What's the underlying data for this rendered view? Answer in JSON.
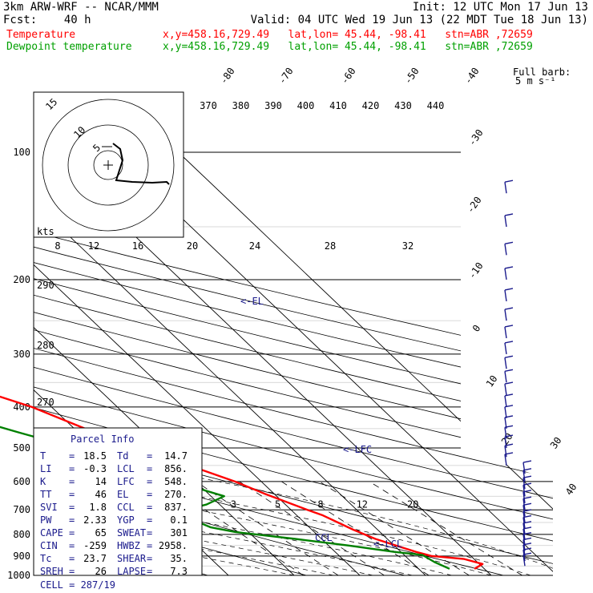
{
  "header": {
    "model": "3km ARW-WRF -- NCAR/MMM",
    "init": "Init: 12 UTC Mon 17 Jun 13",
    "fcst": "Fcst:    40 h",
    "valid": "Valid: 04 UTC Wed 19 Jun 13 (22 MDT Tue 18 Jun 13)",
    "temp_label": "Temperature",
    "temp_info": "x,y=458.16,729.49   lat,lon= 45.44, -98.41   stn=ABR ,72659",
    "dew_label": "Dewpoint temperature",
    "dew_info": "x,y=458.16,729.49   lat,lon= 45.44, -98.41   stn=ABR ,72659"
  },
  "colors": {
    "temperature": "#ff0000",
    "dewpoint": "#008000",
    "annotation": "#1a1a8c",
    "grid": "#000000",
    "fill_line": "#cccccc"
  },
  "chart_data": {
    "type": "line",
    "pressure_levels": [
      1000,
      900,
      800,
      700,
      600,
      500,
      400,
      300,
      200,
      100
    ],
    "pressure_labels": [
      "1000",
      "900",
      "800",
      "700",
      "600",
      "500",
      "400",
      "300",
      "200",
      "100"
    ],
    "isotherm_labels": [
      "-80",
      "-70",
      "-60",
      "-50",
      "-40",
      "-30",
      "-20",
      "-10",
      "0",
      "10",
      "20",
      "30",
      "40"
    ],
    "isotherm_values": [
      -80,
      -70,
      -60,
      -50,
      -40,
      -30,
      -20,
      -10,
      0,
      10,
      20,
      30,
      40
    ],
    "theta_labels": [
      "370",
      "380",
      "390",
      "400",
      "410",
      "420",
      "430",
      "440"
    ],
    "dry_adiabat_labels": [
      "290",
      "280",
      "270"
    ],
    "mixing_ratio_labels": [
      "2",
      "3",
      "5",
      "8",
      "12",
      "20"
    ],
    "hodo_axis_labels": [
      "8",
      "12",
      "16",
      "20",
      "24",
      "28",
      "32"
    ],
    "hodo_unit": "kts",
    "hodo_ring_labels": [
      "15",
      "10",
      "5"
    ],
    "barb_label": "Full barb:",
    "barb_unit": "5 m s⁻¹",
    "series": [
      {
        "name": "Temperature",
        "color": "#ff0000",
        "points": [
          [
            965,
            18.5
          ],
          [
            940,
            20.5
          ],
          [
            915,
            18.5
          ],
          [
            900,
            14
          ],
          [
            880,
            12.3
          ],
          [
            820,
            8.2
          ],
          [
            780,
            6.3
          ],
          [
            720,
            3.9
          ],
          [
            700,
            2.5
          ],
          [
            640,
            -1.5
          ],
          [
            600,
            -4
          ],
          [
            560,
            -7.5
          ],
          [
            520,
            -11
          ],
          [
            500,
            -13
          ],
          [
            460,
            -17.5
          ],
          [
            400,
            -23
          ],
          [
            360,
            -29
          ],
          [
            300,
            -39
          ],
          [
            260,
            -47
          ],
          [
            220,
            -56
          ],
          [
            205,
            -58.5
          ],
          [
            190,
            -59.5
          ],
          [
            175,
            -58
          ],
          [
            160,
            -54.5
          ],
          [
            140,
            -55
          ],
          [
            120,
            -57
          ],
          [
            100,
            -54
          ]
        ]
      },
      {
        "name": "Dewpoint temperature",
        "color": "#008000",
        "points": [
          [
            965,
            14.7
          ],
          [
            930,
            13.5
          ],
          [
            895,
            12.8
          ],
          [
            880,
            9
          ],
          [
            850,
            3
          ],
          [
            820,
            -4
          ],
          [
            790,
            -12
          ],
          [
            770,
            -15
          ],
          [
            720,
            -17.5
          ],
          [
            700,
            -16
          ],
          [
            680,
            -12
          ],
          [
            650,
            -8
          ],
          [
            620,
            -11
          ],
          [
            600,
            -13.3
          ],
          [
            560,
            -16
          ],
          [
            500,
            -23
          ],
          [
            460,
            -29
          ],
          [
            420,
            -35
          ],
          [
            400,
            -37
          ],
          [
            370,
            -38
          ],
          [
            330,
            -43
          ],
          [
            300,
            -48.5
          ],
          [
            260,
            -55
          ],
          [
            230,
            -61
          ],
          [
            200,
            -67
          ],
          [
            180,
            -70
          ],
          [
            150,
            -73
          ],
          [
            130,
            -77
          ],
          [
            115,
            -78
          ],
          [
            100,
            -82
          ]
        ]
      }
    ],
    "annotations": [
      "<-EL",
      "<-LFC",
      "<-LCL",
      "CCL"
    ]
  },
  "parcel_info": {
    "title": "Parcel Info",
    "rows": [
      {
        "l1": "T",
        "v1": "18.5",
        "l2": "Td",
        "v2": "14.7"
      },
      {
        "l1": "LI",
        "v1": "-0.3",
        "l2": "LCL",
        "v2": "856."
      },
      {
        "l1": "K",
        "v1": "14",
        "l2": "LFC",
        "v2": "548."
      },
      {
        "l1": "TT",
        "v1": "46",
        "l2": "EL",
        "v2": "270."
      },
      {
        "l1": "SVI",
        "v1": "1.8",
        "l2": "CCL",
        "v2": "837."
      },
      {
        "l1": "PW",
        "v1": "2.33",
        "l2": "YGP",
        "v2": "0.1"
      },
      {
        "l1": "CAPE",
        "v1": "65",
        "l2": "SWEAT",
        "v2": "301"
      },
      {
        "l1": "CIN",
        "v1": "-259",
        "l2": "HWBZ",
        "v2": "2958."
      },
      {
        "l1": "Tc",
        "v1": "23.7",
        "l2": "SHEAR",
        "v2": "35."
      },
      {
        "l1": "SREH",
        "v1": "26",
        "l2": "LAPSE",
        "v2": "7.3"
      }
    ],
    "cell": "CELL = 287/19"
  }
}
